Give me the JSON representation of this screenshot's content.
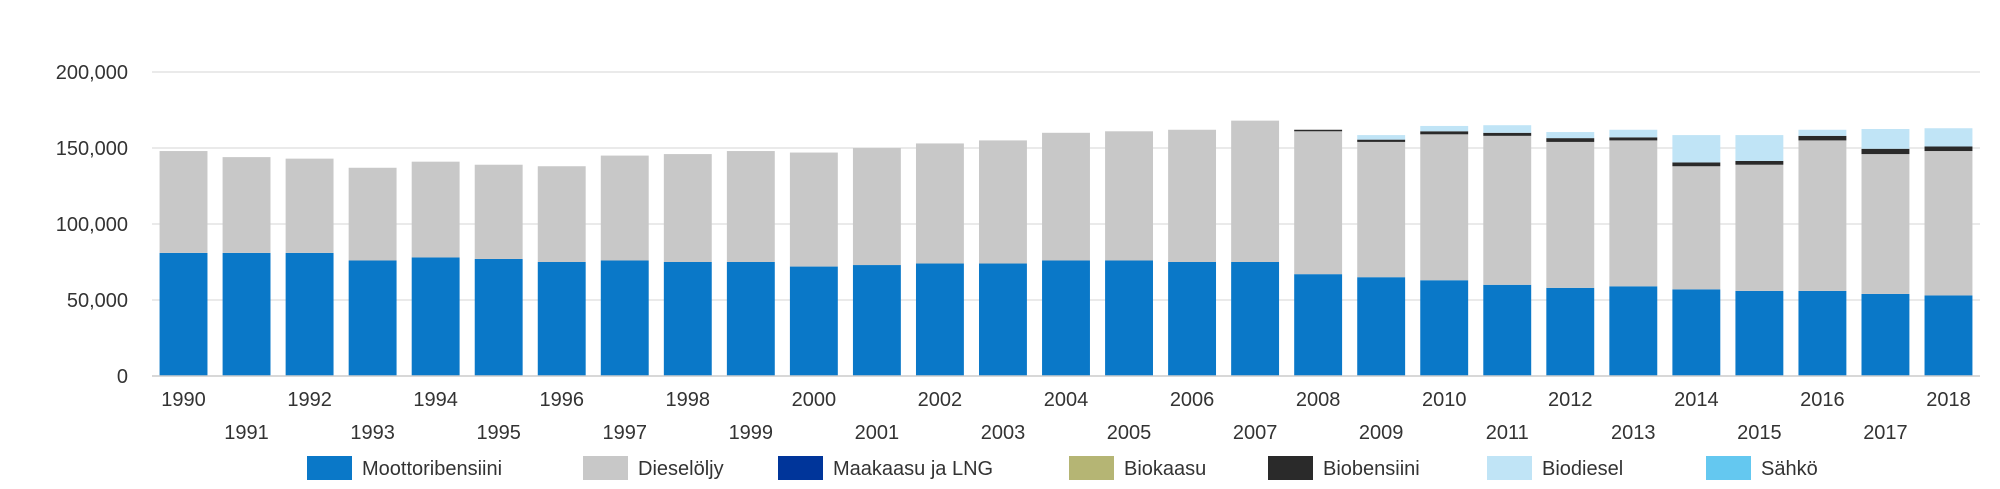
{
  "chart_data": {
    "type": "bar",
    "stacked": true,
    "title": "",
    "xlabel": "",
    "ylabel": "",
    "ylim": [
      0,
      200000
    ],
    "yticks": [
      0,
      50000,
      100000,
      150000,
      200000
    ],
    "ytick_labels": [
      "0",
      "50,000",
      "100,000",
      "150,000",
      "200,000"
    ],
    "grid": true,
    "legend_position": "bottom",
    "categories": [
      "1990",
      "1991",
      "1992",
      "1993",
      "1994",
      "1995",
      "1996",
      "1997",
      "1998",
      "1999",
      "2000",
      "2001",
      "2002",
      "2003",
      "2004",
      "2005",
      "2006",
      "2007",
      "2008",
      "2009",
      "2010",
      "2011",
      "2012",
      "2013",
      "2014",
      "2015",
      "2016",
      "2017",
      "2018"
    ],
    "series": [
      {
        "name": "Moottoribensiini",
        "color": "#0A78C8",
        "values": [
          81000,
          81000,
          81000,
          76000,
          78000,
          77000,
          75000,
          76000,
          75000,
          75000,
          72000,
          73000,
          74000,
          74000,
          76000,
          76000,
          75000,
          75000,
          67000,
          65000,
          63000,
          60000,
          58000,
          59000,
          57000,
          56000,
          56000,
          54000,
          53000
        ]
      },
      {
        "name": "Dieselöljy",
        "color": "#C8C8C8",
        "values": [
          67000,
          63000,
          62000,
          61000,
          63000,
          62000,
          63000,
          69000,
          71000,
          73000,
          75000,
          77000,
          79000,
          81000,
          84000,
          85000,
          87000,
          93000,
          94000,
          89000,
          96000,
          98000,
          96000,
          96000,
          81000,
          83000,
          99000,
          92000,
          95000
        ]
      },
      {
        "name": "Maakaasu ja LNG",
        "color": "#00359A",
        "values": [
          0,
          0,
          0,
          0,
          0,
          0,
          0,
          0,
          0,
          0,
          0,
          0,
          0,
          0,
          0,
          0,
          0,
          0,
          0,
          0,
          0,
          0,
          0,
          0,
          0,
          0,
          0,
          0,
          0
        ]
      },
      {
        "name": "Biokaasu",
        "color": "#B5B574",
        "values": [
          0,
          0,
          0,
          0,
          0,
          0,
          0,
          0,
          0,
          0,
          0,
          0,
          0,
          0,
          0,
          0,
          0,
          0,
          0,
          0,
          0,
          0,
          0,
          0,
          0,
          0,
          0,
          0,
          0
        ]
      },
      {
        "name": "Biobensiini",
        "color": "#2A2A2A",
        "values": [
          0,
          0,
          0,
          0,
          0,
          0,
          0,
          0,
          0,
          0,
          0,
          0,
          0,
          0,
          0,
          0,
          0,
          0,
          1000,
          1500,
          2000,
          2000,
          2500,
          2000,
          2500,
          2500,
          3000,
          3500,
          3000
        ]
      },
      {
        "name": "Biodiesel",
        "color": "#C0E4F6",
        "values": [
          0,
          0,
          0,
          0,
          0,
          0,
          0,
          0,
          0,
          0,
          0,
          0,
          0,
          0,
          0,
          0,
          0,
          0,
          0,
          3000,
          3500,
          5000,
          4000,
          5000,
          18000,
          17000,
          4000,
          13000,
          12000
        ]
      },
      {
        "name": "Sähkö",
        "color": "#64C8F0",
        "values": [
          0,
          0,
          0,
          0,
          0,
          0,
          0,
          0,
          0,
          0,
          0,
          0,
          0,
          0,
          0,
          0,
          0,
          0,
          0,
          0,
          0,
          0,
          0,
          0,
          0,
          0,
          0,
          0,
          0
        ]
      }
    ]
  }
}
